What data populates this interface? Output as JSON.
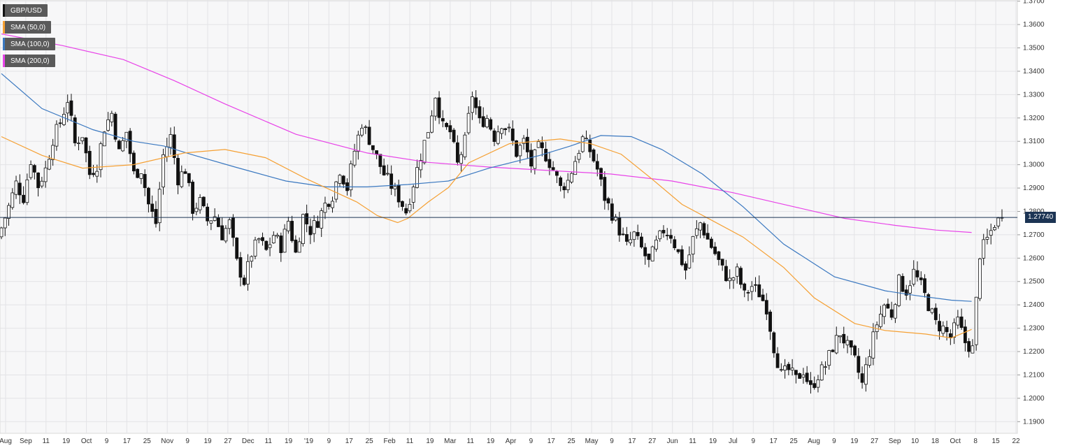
{
  "chart_data": {
    "type": "candlestick",
    "symbol": "GBP/USD",
    "current_price_label": "1.27740",
    "current_price": 1.2774,
    "ylim": [
      1.185,
      1.3705
    ],
    "y_ticks": [
      "1.1900",
      "1.2000",
      "1.2100",
      "1.2200",
      "1.2300",
      "1.2400",
      "1.2500",
      "1.2600",
      "1.2700",
      "1.2800",
      "1.2900",
      "1.3000",
      "1.3100",
      "1.3200",
      "1.3300",
      "1.3400",
      "1.3500",
      "1.3600",
      "1.3700"
    ],
    "x_ticks": [
      "Aug",
      "Sep",
      "11",
      "19",
      "Oct",
      "9",
      "17",
      "25",
      "Nov",
      "9",
      "19",
      "27",
      "Dec",
      "11",
      "19",
      "'19",
      "9",
      "17",
      "25",
      "Feb",
      "11",
      "19",
      "Mar",
      "11",
      "19",
      "Apr",
      "9",
      "17",
      "25",
      "May",
      "9",
      "17",
      "27",
      "Jun",
      "11",
      "19",
      "Jul",
      "9",
      "17",
      "25",
      "Aug",
      "9",
      "19",
      "27",
      "Sep",
      "10",
      "18",
      "Oct",
      "8",
      "15",
      "22"
    ],
    "legend": [
      {
        "label": "GBP/USD",
        "color": "#111111"
      },
      {
        "label": "SMA (50,0)",
        "color": "#f5a033"
      },
      {
        "label": "SMA (100,0)",
        "color": "#3a78c0"
      },
      {
        "label": "SMA (200,0)",
        "color": "#e843e8"
      }
    ],
    "close_path": [
      [
        0,
        1.273
      ],
      [
        2,
        1.282
      ],
      [
        4,
        1.292
      ],
      [
        6,
        1.286
      ],
      [
        8,
        1.302
      ],
      [
        10,
        1.291
      ],
      [
        12,
        1.298
      ],
      [
        14,
        1.311
      ],
      [
        16,
        1.318
      ],
      [
        18,
        1.328
      ],
      [
        20,
        1.309
      ],
      [
        22,
        1.313
      ],
      [
        24,
        1.296
      ],
      [
        26,
        1.3
      ],
      [
        28,
        1.316
      ],
      [
        30,
        1.322
      ],
      [
        32,
        1.305
      ],
      [
        34,
        1.314
      ],
      [
        36,
        1.296
      ],
      [
        38,
        1.298
      ],
      [
        40,
        1.283
      ],
      [
        42,
        1.275
      ],
      [
        44,
        1.304
      ],
      [
        46,
        1.312
      ],
      [
        48,
        1.294
      ],
      [
        50,
        1.298
      ],
      [
        52,
        1.281
      ],
      [
        54,
        1.284
      ],
      [
        56,
        1.276
      ],
      [
        58,
        1.278
      ],
      [
        60,
        1.27
      ],
      [
        62,
        1.275
      ],
      [
        64,
        1.258
      ],
      [
        66,
        1.25
      ],
      [
        68,
        1.262
      ],
      [
        70,
        1.268
      ],
      [
        72,
        1.263
      ],
      [
        74,
        1.27
      ],
      [
        76,
        1.265
      ],
      [
        78,
        1.276
      ],
      [
        80,
        1.262
      ],
      [
        82,
        1.278
      ],
      [
        84,
        1.272
      ],
      [
        86,
        1.276
      ],
      [
        88,
        1.283
      ],
      [
        90,
        1.287
      ],
      [
        92,
        1.298
      ],
      [
        94,
        1.29
      ],
      [
        96,
        1.306
      ],
      [
        98,
        1.318
      ],
      [
        100,
        1.311
      ],
      [
        102,
        1.303
      ],
      [
        104,
        1.296
      ],
      [
        106,
        1.291
      ],
      [
        108,
        1.286
      ],
      [
        110,
        1.28
      ],
      [
        112,
        1.292
      ],
      [
        114,
        1.304
      ],
      [
        116,
        1.315
      ],
      [
        118,
        1.33
      ],
      [
        120,
        1.316
      ],
      [
        122,
        1.314
      ],
      [
        124,
        1.3
      ],
      [
        126,
        1.31
      ],
      [
        128,
        1.33
      ],
      [
        130,
        1.318
      ],
      [
        132,
        1.32
      ],
      [
        134,
        1.312
      ],
      [
        136,
        1.318
      ],
      [
        138,
        1.314
      ],
      [
        140,
        1.305
      ],
      [
        142,
        1.31
      ],
      [
        144,
        1.3
      ],
      [
        146,
        1.307
      ],
      [
        148,
        1.304
      ],
      [
        150,
        1.298
      ],
      [
        152,
        1.29
      ],
      [
        154,
        1.293
      ],
      [
        156,
        1.302
      ],
      [
        158,
        1.311
      ],
      [
        160,
        1.306
      ],
      [
        162,
        1.298
      ],
      [
        164,
        1.286
      ],
      [
        166,
        1.279
      ],
      [
        168,
        1.272
      ],
      [
        170,
        1.265
      ],
      [
        172,
        1.27
      ],
      [
        174,
        1.264
      ],
      [
        176,
        1.258
      ],
      [
        178,
        1.266
      ],
      [
        180,
        1.272
      ],
      [
        182,
        1.27
      ],
      [
        184,
        1.262
      ],
      [
        186,
        1.255
      ],
      [
        188,
        1.268
      ],
      [
        190,
        1.275
      ],
      [
        192,
        1.268
      ],
      [
        194,
        1.262
      ],
      [
        196,
        1.255
      ],
      [
        198,
        1.25
      ],
      [
        200,
        1.254
      ],
      [
        202,
        1.244
      ],
      [
        204,
        1.248
      ],
      [
        206,
        1.245
      ],
      [
        208,
        1.239
      ],
      [
        210,
        1.222
      ],
      [
        212,
        1.21
      ],
      [
        214,
        1.212
      ],
      [
        216,
        1.208
      ],
      [
        218,
        1.212
      ],
      [
        220,
        1.204
      ],
      [
        222,
        1.21
      ],
      [
        224,
        1.214
      ],
      [
        226,
        1.222
      ],
      [
        228,
        1.228
      ],
      [
        230,
        1.222
      ],
      [
        232,
        1.216
      ],
      [
        234,
        1.206
      ],
      [
        236,
        1.22
      ],
      [
        238,
        1.232
      ],
      [
        240,
        1.24
      ],
      [
        242,
        1.236
      ],
      [
        244,
        1.25
      ],
      [
        246,
        1.246
      ],
      [
        248,
        1.254
      ],
      [
        250,
        1.248
      ],
      [
        252,
        1.24
      ],
      [
        254,
        1.232
      ],
      [
        256,
        1.23
      ],
      [
        258,
        1.226
      ],
      [
        260,
        1.233
      ],
      [
        262,
        1.224
      ],
      [
        264,
        1.221
      ],
      [
        266,
        1.262
      ],
      [
        268,
        1.268
      ],
      [
        270,
        1.275
      ],
      [
        272,
        1.277
      ]
    ],
    "sma_50": [
      [
        1.312,
        0
      ],
      [
        1.304,
        0.04
      ],
      [
        1.2985,
        0.08
      ],
      [
        1.3,
        0.13
      ],
      [
        1.305,
        0.18
      ],
      [
        1.3065,
        0.22
      ],
      [
        1.303,
        0.26
      ],
      [
        1.294,
        0.3
      ],
      [
        1.284,
        0.35
      ],
      [
        1.2782,
        0.37
      ],
      [
        1.2752,
        0.39
      ],
      [
        1.277,
        0.4
      ],
      [
        1.284,
        0.42
      ],
      [
        1.2902,
        0.44
      ],
      [
        1.3008,
        0.46
      ],
      [
        1.309,
        0.5
      ],
      [
        1.311,
        0.55
      ],
      [
        1.309,
        0.58
      ],
      [
        1.3045,
        0.61
      ],
      [
        1.294,
        0.64
      ],
      [
        1.283,
        0.67
      ],
      [
        1.276,
        0.7
      ],
      [
        1.269,
        0.73
      ],
      [
        1.256,
        0.77
      ],
      [
        1.243,
        0.8
      ],
      [
        1.232,
        0.84
      ],
      [
        1.229,
        0.87
      ],
      [
        1.2275,
        0.91
      ],
      [
        1.2258,
        0.935
      ],
      [
        1.2295,
        0.955
      ]
    ],
    "sma_100": [
      [
        1.339,
        0
      ],
      [
        1.324,
        0.04
      ],
      [
        1.315,
        0.09
      ],
      [
        1.31,
        0.13
      ],
      [
        1.308,
        0.16
      ],
      [
        1.304,
        0.19
      ],
      [
        1.299,
        0.23
      ],
      [
        1.293,
        0.28
      ],
      [
        1.2905,
        0.32
      ],
      [
        1.2905,
        0.36
      ],
      [
        1.2915,
        0.4
      ],
      [
        1.293,
        0.44
      ],
      [
        1.2985,
        0.48
      ],
      [
        1.304,
        0.53
      ],
      [
        1.308,
        0.56
      ],
      [
        1.3125,
        0.59
      ],
      [
        1.312,
        0.62
      ],
      [
        1.3065,
        0.65
      ],
      [
        1.296,
        0.69
      ],
      [
        1.282,
        0.73
      ],
      [
        1.266,
        0.77
      ],
      [
        1.252,
        0.82
      ],
      [
        1.246,
        0.87
      ],
      [
        1.244,
        0.9
      ],
      [
        1.242,
        0.935
      ],
      [
        1.2415,
        0.955
      ]
    ],
    "sma_200": [
      [
        1.356,
        0
      ],
      [
        1.351,
        0.06
      ],
      [
        1.345,
        0.12
      ],
      [
        1.336,
        0.17
      ],
      [
        1.326,
        0.22
      ],
      [
        1.313,
        0.29
      ],
      [
        1.305,
        0.36
      ],
      [
        1.301,
        0.42
      ],
      [
        1.299,
        0.48
      ],
      [
        1.2975,
        0.54
      ],
      [
        1.296,
        0.6
      ],
      [
        1.293,
        0.66
      ],
      [
        1.288,
        0.72
      ],
      [
        1.282,
        0.78
      ],
      [
        1.277,
        0.83
      ],
      [
        1.274,
        0.88
      ],
      [
        1.272,
        0.92
      ],
      [
        1.271,
        0.955
      ]
    ]
  }
}
